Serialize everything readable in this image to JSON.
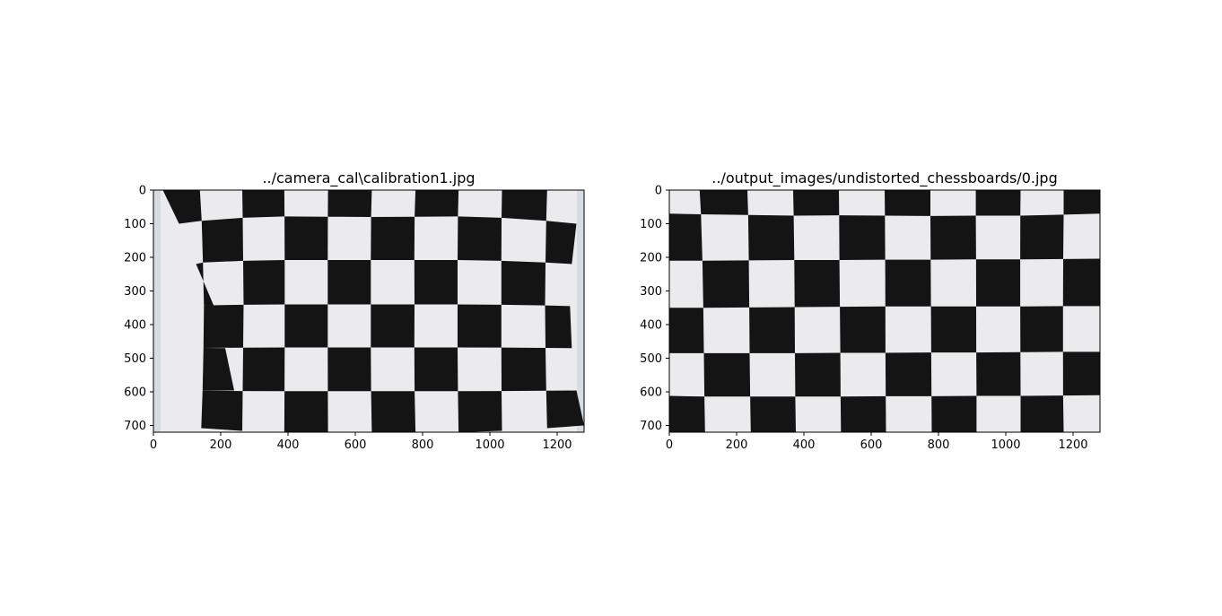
{
  "figure": {
    "panels": [
      {
        "title": "../camera_cal\\calibration1.jpg",
        "kind": "distorted",
        "image_width": 1280,
        "image_height": 720,
        "xticks": [
          "0",
          "200",
          "400",
          "600",
          "800",
          "1000",
          "1200"
        ],
        "yticks": [
          "0",
          "100",
          "200",
          "300",
          "400",
          "500",
          "600",
          "700"
        ]
      },
      {
        "title": "../output_images/undistorted_chessboards/0.jpg",
        "kind": "undistorted",
        "image_width": 1280,
        "image_height": 720,
        "xticks": [
          "0",
          "200",
          "400",
          "600",
          "800",
          "1000",
          "1200"
        ],
        "yticks": [
          "0",
          "100",
          "200",
          "300",
          "400",
          "500",
          "600",
          "700"
        ]
      }
    ],
    "colors": {
      "dark_square": "#141414",
      "light_square": "#ebebed",
      "border_bg": "#d5dde2"
    }
  }
}
